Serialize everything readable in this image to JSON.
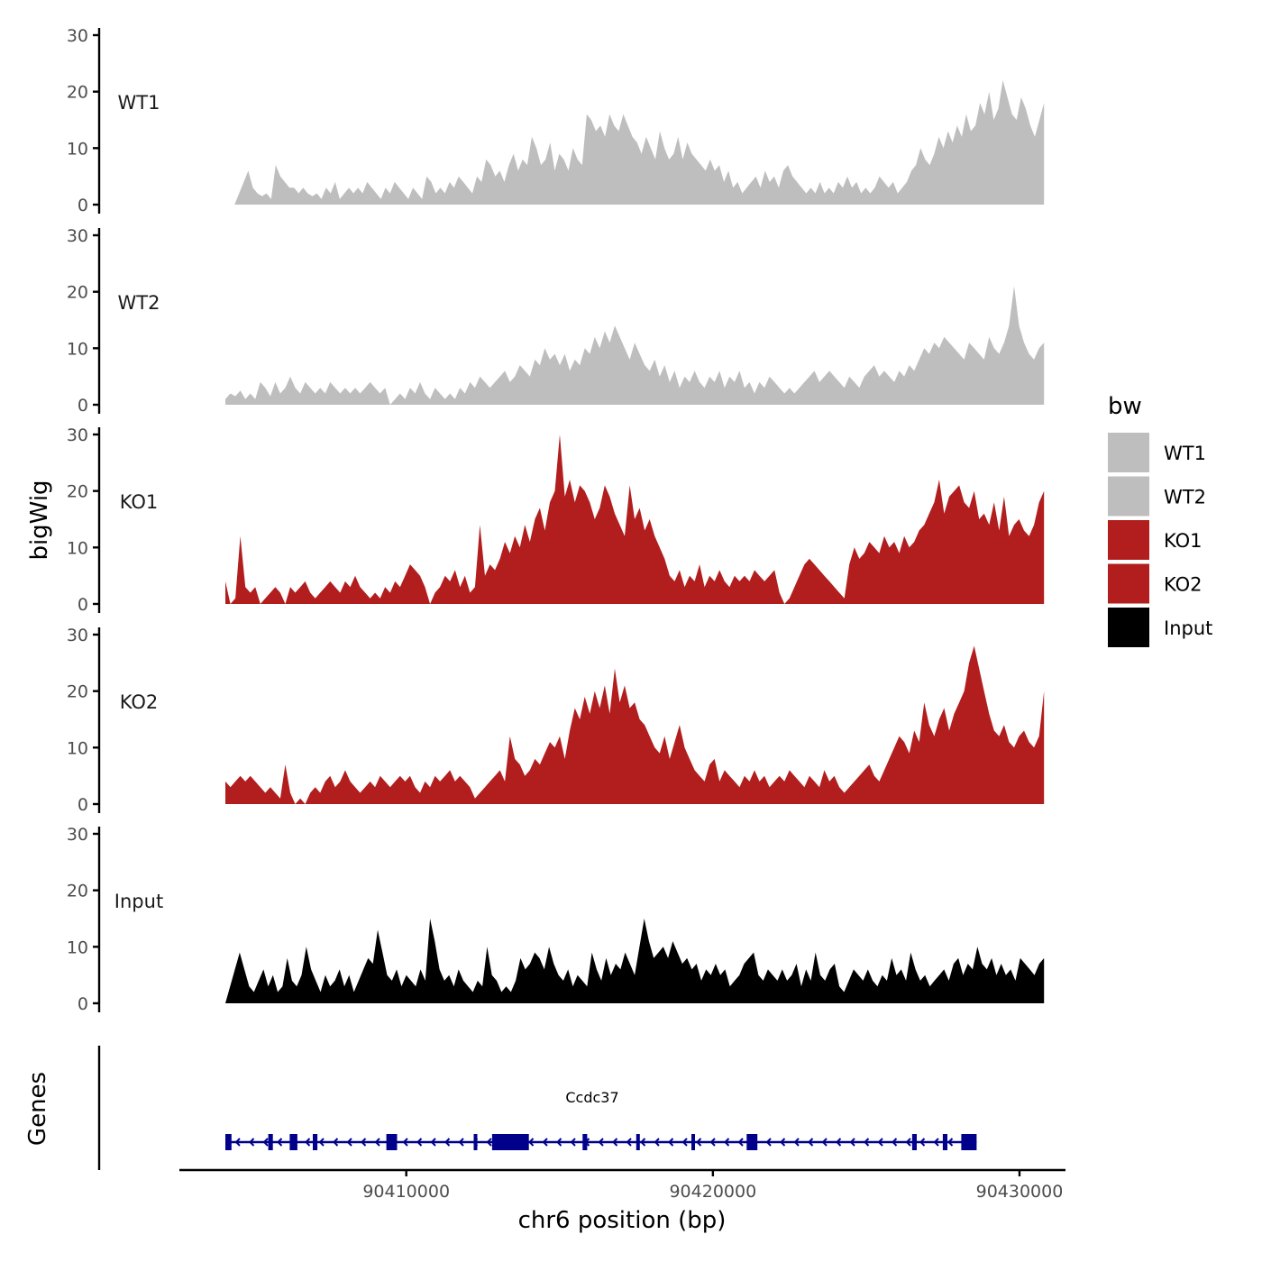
{
  "chart_data": {
    "type": "area",
    "xlabel": "chr6 position (bp)",
    "ylabel": "bigWig",
    "genes_label": "Genes",
    "xlim": [
      90402600,
      90431500
    ],
    "ylim": [
      0,
      30
    ],
    "x_ticks": [
      90410000,
      90420000,
      90430000
    ],
    "x_tick_labels": [
      "90410000",
      "90420000",
      "90430000"
    ],
    "y_ticks": [
      0,
      10,
      20,
      30
    ],
    "y_tick_labels": [
      "0",
      "10",
      "20",
      "30"
    ],
    "legend": {
      "title": "bw",
      "position": "right"
    },
    "tracks": [
      {
        "name": "WT1",
        "label": "WT1",
        "color": "#BEBEBE",
        "x_start": 90404400,
        "x_end": 90430800,
        "values": [
          0,
          2,
          4,
          6,
          3,
          2,
          1.5,
          2,
          1,
          7,
          5,
          4,
          3,
          3,
          2,
          3,
          2,
          1.5,
          2,
          1,
          3,
          2,
          4,
          1,
          2,
          3,
          2,
          3,
          2,
          4,
          3,
          2,
          1,
          3,
          2,
          4,
          3,
          2,
          1,
          3,
          2,
          1,
          5,
          4,
          2,
          3,
          2,
          4,
          3,
          5,
          4,
          3,
          2,
          5,
          4,
          8,
          7,
          5,
          6,
          4,
          7,
          9,
          6,
          8,
          7,
          12,
          10,
          7,
          8,
          11,
          6,
          9,
          8,
          6,
          10,
          8,
          7,
          16,
          15,
          13,
          14,
          12,
          16,
          14,
          13,
          16,
          14,
          12,
          11,
          9,
          12,
          10,
          8,
          13,
          10,
          8,
          9,
          12,
          8,
          11,
          9,
          8,
          7,
          6,
          8,
          6,
          7,
          4,
          6,
          3,
          4,
          2,
          3,
          4,
          5,
          3,
          6,
          4,
          5,
          3,
          6,
          7,
          5,
          4,
          3,
          2,
          3,
          2,
          4,
          2,
          3,
          2,
          4,
          3,
          5,
          3,
          4,
          2,
          3,
          2,
          3,
          5,
          4,
          3,
          4,
          2,
          3,
          4,
          6,
          7,
          10,
          8,
          7,
          9,
          12,
          10,
          13,
          11,
          14,
          12,
          16,
          13,
          14,
          18,
          16,
          20,
          15,
          17,
          22,
          19,
          16,
          15,
          19,
          17,
          14,
          12,
          15,
          18
        ]
      },
      {
        "name": "WT2",
        "label": "WT2",
        "color": "#BEBEBE",
        "x_start": 90404100,
        "x_end": 90430800,
        "values": [
          1,
          2,
          1.5,
          2.5,
          1,
          2,
          1,
          4,
          3,
          1.5,
          4,
          2,
          3,
          5,
          3,
          2,
          4,
          3,
          2,
          3,
          2,
          4,
          3,
          2,
          3,
          2,
          3,
          2,
          3,
          4,
          3,
          2,
          3,
          0,
          1,
          2,
          1,
          3,
          2,
          4,
          2,
          1,
          3,
          2,
          1,
          2,
          1,
          3,
          2,
          4,
          3,
          5,
          4,
          3,
          4,
          5,
          6,
          4,
          5,
          7,
          6,
          5,
          8,
          7,
          10,
          8,
          9,
          7,
          9,
          6,
          8,
          7,
          10,
          9,
          12,
          10,
          13,
          11,
          14,
          12,
          10,
          8,
          11,
          9,
          7,
          6,
          8,
          5,
          7,
          4,
          6,
          3,
          5,
          4,
          6,
          4,
          3,
          5,
          4,
          6,
          3,
          5,
          4,
          6,
          3,
          4,
          2,
          4,
          3,
          5,
          4,
          3,
          2,
          3,
          2,
          3,
          4,
          5,
          6,
          4,
          5,
          6,
          5,
          4,
          3,
          5,
          4,
          3,
          5,
          6,
          7,
          5,
          6,
          5,
          4,
          6,
          5,
          7,
          6,
          8,
          10,
          9,
          11,
          10,
          12,
          11,
          10,
          9,
          8,
          11,
          10,
          9,
          8,
          12,
          10,
          9,
          11,
          14,
          21,
          14,
          11,
          9,
          8,
          10,
          11
        ]
      },
      {
        "name": "KO1",
        "label": "KO1",
        "color": "#B21E1E",
        "x_start": 90404100,
        "x_end": 90430800,
        "values": [
          4,
          0,
          1,
          12,
          3,
          2,
          3,
          0,
          1,
          2,
          3,
          2,
          0,
          3,
          2,
          3,
          4,
          2,
          1,
          2,
          3,
          4,
          3,
          2,
          4,
          3,
          5,
          3,
          2,
          1,
          2,
          1,
          3,
          2,
          4,
          3,
          5,
          7,
          6,
          5,
          3,
          0,
          2,
          3,
          5,
          4,
          6,
          3,
          5,
          2,
          3,
          14,
          5,
          7,
          6,
          8,
          11,
          9,
          12,
          10,
          14,
          11,
          15,
          17,
          13,
          18,
          20,
          30,
          19,
          22,
          18,
          21,
          20,
          18,
          15,
          17,
          21,
          19,
          16,
          14,
          12,
          21,
          15,
          17,
          13,
          15,
          12,
          10,
          8,
          5,
          4,
          6,
          3,
          5,
          4,
          7,
          3,
          5,
          4,
          6,
          4,
          3,
          5,
          4,
          5,
          4,
          6,
          5,
          4,
          5,
          6,
          2,
          0,
          1,
          3,
          5,
          7,
          8,
          7,
          6,
          5,
          4,
          3,
          2,
          1,
          7,
          10,
          8,
          9,
          11,
          10,
          9,
          12,
          10,
          11,
          9,
          12,
          10,
          11,
          13,
          14,
          16,
          18,
          22,
          16,
          19,
          20,
          21,
          18,
          17,
          20,
          15,
          16,
          14,
          18,
          13,
          19,
          12,
          14,
          15,
          13,
          12,
          14,
          18,
          20
        ]
      },
      {
        "name": "KO2",
        "label": "KO2",
        "color": "#B21E1E",
        "x_start": 90404100,
        "x_end": 90430800,
        "values": [
          4,
          3,
          4,
          5,
          4,
          5,
          4,
          3,
          2,
          3,
          2,
          1,
          7,
          2,
          0,
          1,
          0,
          2,
          3,
          2,
          4,
          5,
          3,
          4,
          6,
          4,
          3,
          2,
          3,
          4,
          3,
          5,
          4,
          3,
          4,
          5,
          4,
          5,
          3,
          2,
          4,
          3,
          5,
          4,
          5,
          6,
          4,
          5,
          4,
          3,
          1,
          2,
          3,
          4,
          5,
          6,
          4,
          12,
          8,
          7,
          5,
          6,
          8,
          7,
          9,
          11,
          10,
          12,
          8,
          13,
          17,
          15,
          19,
          16,
          20,
          17,
          21,
          16,
          24,
          18,
          21,
          17,
          18,
          15,
          14,
          12,
          10,
          9,
          12,
          8,
          11,
          14,
          10,
          8,
          6,
          5,
          4,
          7,
          8,
          4,
          6,
          5,
          4,
          3,
          5,
          4,
          6,
          4,
          5,
          3,
          4,
          5,
          4,
          6,
          5,
          4,
          3,
          5,
          4,
          3,
          6,
          4,
          5,
          3,
          2,
          3,
          4,
          5,
          6,
          7,
          5,
          4,
          6,
          8,
          10,
          12,
          11,
          9,
          13,
          11,
          18,
          14,
          12,
          15,
          17,
          13,
          16,
          18,
          20,
          25,
          28,
          24,
          20,
          16,
          13,
          12,
          14,
          11,
          10,
          12,
          13,
          11,
          10,
          12,
          20
        ]
      },
      {
        "name": "Input",
        "label": "Input",
        "color": "#000000",
        "x_start": 90404100,
        "x_end": 90430800,
        "values": [
          0,
          3,
          6,
          9,
          6,
          3,
          2,
          4,
          6,
          3,
          5,
          2,
          3,
          8,
          4,
          3,
          5,
          10,
          6,
          4,
          2,
          5,
          3,
          4,
          6,
          3,
          5,
          2,
          4,
          6,
          8,
          7,
          13,
          9,
          5,
          4,
          6,
          3,
          5,
          4,
          3,
          6,
          4,
          15,
          11,
          6,
          4,
          5,
          3,
          6,
          4,
          3,
          2,
          4,
          3,
          10,
          5,
          4,
          2,
          3,
          2,
          4,
          8,
          6,
          7,
          9,
          8,
          6,
          10,
          7,
          5,
          4,
          6,
          3,
          5,
          4,
          3,
          9,
          6,
          4,
          8,
          5,
          7,
          6,
          9,
          7,
          5,
          10,
          15,
          11,
          8,
          9,
          10,
          8,
          11,
          9,
          7,
          8,
          6,
          7,
          4,
          6,
          5,
          7,
          5,
          6,
          3,
          4,
          5,
          7,
          8,
          9,
          5,
          4,
          6,
          5,
          4,
          6,
          4,
          5,
          7,
          3,
          6,
          4,
          9,
          5,
          4,
          6,
          7,
          3,
          2,
          4,
          6,
          5,
          4,
          6,
          4,
          3,
          5,
          4,
          8,
          5,
          6,
          4,
          9,
          6,
          4,
          5,
          3,
          4,
          5,
          6,
          4,
          7,
          8,
          5,
          7,
          6,
          10,
          7,
          6,
          8,
          5,
          7,
          5,
          6,
          4,
          8,
          7,
          6,
          5,
          7,
          8
        ]
      }
    ],
    "gene": {
      "name": "Ccdc37",
      "color": "#00008B",
      "strand": "-",
      "start": 90404100,
      "end": 90428600,
      "exons": [
        [
          90404100,
          90404300
        ],
        [
          90405500,
          90405650
        ],
        [
          90406200,
          90406450
        ],
        [
          90406950,
          90407100
        ],
        [
          90409350,
          90409700
        ],
        [
          90412200,
          90412300
        ],
        [
          90412800,
          90414000
        ],
        [
          90415750,
          90415900
        ],
        [
          90417500,
          90417600
        ],
        [
          90419300,
          90419400
        ],
        [
          90421100,
          90421450
        ],
        [
          90426500,
          90426650
        ],
        [
          90427500,
          90427650
        ],
        [
          90428100,
          90428600
        ]
      ]
    }
  }
}
